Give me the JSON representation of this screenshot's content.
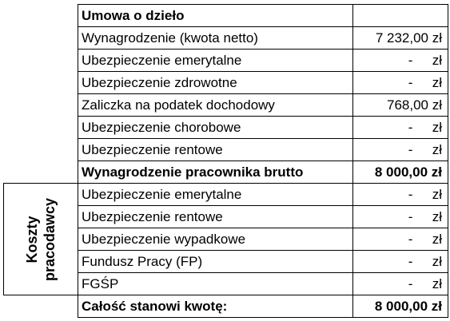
{
  "table": {
    "title": "Umowa o dzieło",
    "rows": [
      {
        "label": "Wynagrodzenie (kwota netto)",
        "value": "7 232,00 zł"
      },
      {
        "label": "Ubezpieczenie emerytalne",
        "dash": "-",
        "unit": "zł"
      },
      {
        "label": "Ubezpieczenie zdrowotne",
        "dash": "-",
        "unit": "zł"
      },
      {
        "label": "Zaliczka na podatek dochodowy",
        "value": "768,00 zł"
      },
      {
        "label": "Ubezpieczenie chorobowe",
        "dash": "-",
        "unit": "zł"
      },
      {
        "label": "Ubezpieczenie rentowe",
        "dash": "-",
        "unit": "zł"
      }
    ],
    "gross": {
      "label": "Wynagrodzenie pracownika brutto",
      "value": "8 000,00 zł"
    },
    "employer_costs": {
      "side_label_line1": "Koszty",
      "side_label_line2": "pracodawcy",
      "rows": [
        {
          "label": "Ubezpieczenie emerytalne",
          "dash": "-",
          "unit": "zł"
        },
        {
          "label": "Ubezpieczenie rentowe",
          "dash": "-",
          "unit": "zł"
        },
        {
          "label": "Ubezpieczenie wypadkowe",
          "dash": "-",
          "unit": "zł"
        },
        {
          "label": "Fundusz Pracy (FP)",
          "dash": "-",
          "unit": "zł"
        },
        {
          "label": "FGŚP",
          "dash": "-",
          "unit": "zł"
        }
      ]
    },
    "total": {
      "label": "Całość stanowi kwotę:",
      "value": "8 000,00 zł"
    }
  }
}
